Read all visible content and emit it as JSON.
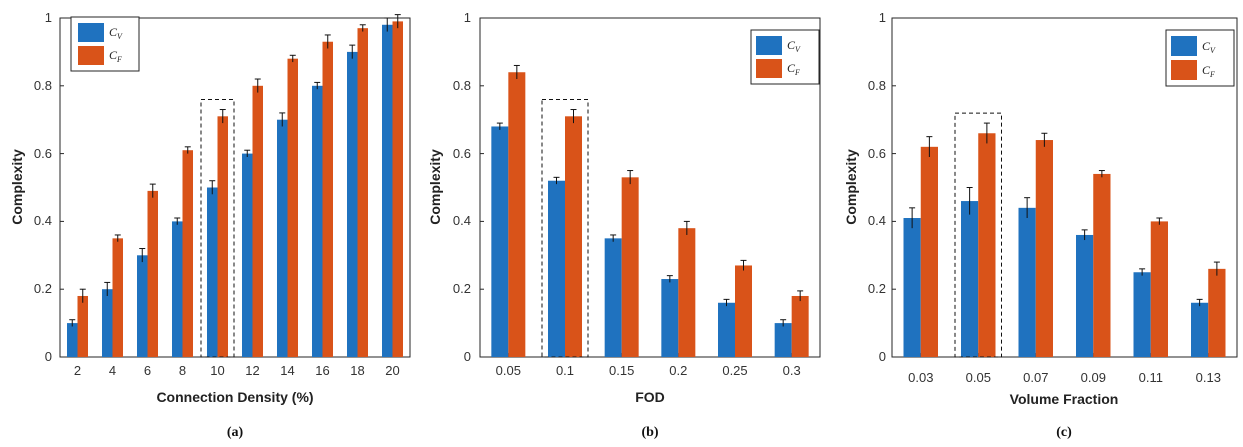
{
  "colors": {
    "cv": "#1f72bf",
    "cf": "#d95319",
    "axis": "#262626",
    "highlight_box": "#111111"
  },
  "chart_data": [
    {
      "type": "bar",
      "caption": "(a)",
      "xlabel": "Connection Density (%)",
      "ylabel": "Complexity",
      "ylim": [
        0,
        1
      ],
      "yticks": [
        "0",
        "0.2",
        "0.4",
        "0.6",
        "0.8",
        "1"
      ],
      "categories": [
        "2",
        "4",
        "6",
        "8",
        "10",
        "12",
        "14",
        "16",
        "18",
        "20"
      ],
      "series": [
        {
          "name": "C_V",
          "legend_main": "C",
          "legend_sub": "V",
          "values": [
            0.1,
            0.2,
            0.3,
            0.4,
            0.5,
            0.6,
            0.7,
            0.8,
            0.9,
            0.98
          ],
          "errors": [
            0.01,
            0.02,
            0.02,
            0.01,
            0.02,
            0.01,
            0.02,
            0.01,
            0.02,
            0.02
          ]
        },
        {
          "name": "C_F",
          "legend_main": "C",
          "legend_sub": "F",
          "values": [
            0.18,
            0.35,
            0.49,
            0.61,
            0.71,
            0.8,
            0.88,
            0.93,
            0.97,
            0.99
          ],
          "errors": [
            0.02,
            0.01,
            0.02,
            0.01,
            0.02,
            0.02,
            0.01,
            0.02,
            0.01,
            0.02
          ]
        }
      ],
      "highlight_index": 4,
      "legend": "top-left"
    },
    {
      "type": "bar",
      "caption": "(b)",
      "xlabel": "FOD",
      "ylabel": "Complexity",
      "ylim": [
        0,
        1
      ],
      "yticks": [
        "0",
        "0.2",
        "0.4",
        "0.6",
        "0.8",
        "1"
      ],
      "categories": [
        "0.05",
        "0.1",
        "0.15",
        "0.2",
        "0.25",
        "0.3"
      ],
      "series": [
        {
          "name": "C_V",
          "legend_main": "C",
          "legend_sub": "V",
          "values": [
            0.68,
            0.52,
            0.35,
            0.23,
            0.16,
            0.1
          ],
          "errors": [
            0.01,
            0.01,
            0.01,
            0.01,
            0.01,
            0.01
          ]
        },
        {
          "name": "C_F",
          "legend_main": "C",
          "legend_sub": "F",
          "values": [
            0.84,
            0.71,
            0.53,
            0.38,
            0.27,
            0.18
          ],
          "errors": [
            0.02,
            0.02,
            0.02,
            0.02,
            0.015,
            0.015
          ]
        }
      ],
      "highlight_index": 1,
      "legend": "top-right"
    },
    {
      "type": "bar",
      "caption": "(c)",
      "xlabel": "Volume Fraction",
      "ylabel": "Complexity",
      "ylim": [
        0,
        1
      ],
      "yticks": [
        "0",
        "0.2",
        "0.4",
        "0.6",
        "0.8",
        "1"
      ],
      "categories": [
        "0.03",
        "0.05",
        "0.07",
        "0.09",
        "0.11",
        "0.13"
      ],
      "series": [
        {
          "name": "C_V",
          "legend_main": "C",
          "legend_sub": "V",
          "values": [
            0.41,
            0.46,
            0.44,
            0.36,
            0.25,
            0.16
          ],
          "errors": [
            0.03,
            0.04,
            0.03,
            0.015,
            0.01,
            0.01
          ]
        },
        {
          "name": "C_F",
          "legend_main": "C",
          "legend_sub": "F",
          "values": [
            0.62,
            0.66,
            0.64,
            0.54,
            0.4,
            0.26
          ],
          "errors": [
            0.03,
            0.03,
            0.02,
            0.01,
            0.01,
            0.02
          ]
        }
      ],
      "highlight_index": 1,
      "legend": "top-right"
    }
  ]
}
